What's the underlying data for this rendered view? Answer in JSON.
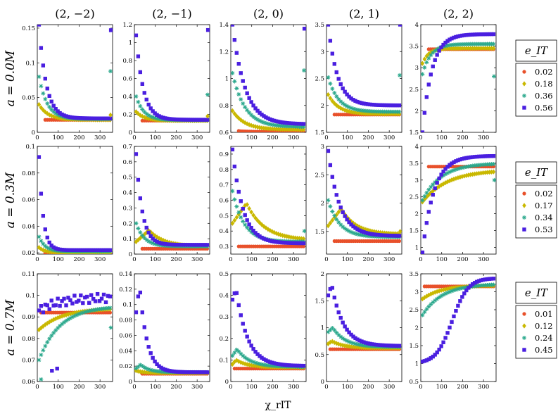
{
  "chart_data": {
    "type": "scatter",
    "xlabel": "χ_rIT",
    "xticks": [
      0,
      100,
      200,
      300
    ],
    "xlim": [
      0,
      360
    ],
    "column_titles": [
      "(2, −2)",
      "(2, −1)",
      "(2, 0)",
      "(2, 1)",
      "(2, 2)"
    ],
    "colors": [
      "#e8502a",
      "#c9b800",
      "#2aa88c",
      "#4a1fe0"
    ],
    "rows": [
      {
        "label": "a = 0.0M",
        "legend_title": "e_IT",
        "legend": [
          "0.02",
          "0.18",
          "0.36",
          "0.56"
        ],
        "panels": [
          {
            "ylim": [
              0,
              0.155
            ],
            "yticks": [
              0,
              0.05,
              0.1,
              0.15
            ],
            "ytick_labels": [
              "0",
              "0.05",
              "0.1",
              "0.15"
            ],
            "series": [
              {
                "type": "flat",
                "y0": 0.018,
                "x0": 30
              },
              {
                "type": "decay",
                "y0": 0.04,
                "yinf": 0.018,
                "tau": 45
              },
              {
                "type": "decay",
                "y0": 0.08,
                "yinf": 0.019,
                "tau": 40
              },
              {
                "type": "decay",
                "y0": 0.155,
                "yinf": 0.02,
                "tau": 35
              }
            ],
            "outliers": [
              {
                "s": 1,
                "x": 350,
                "y": 0.025
              },
              {
                "s": 2,
                "x": 350,
                "y": 0.088
              },
              {
                "s": 3,
                "x": 352,
                "y": 0.147
              }
            ]
          },
          {
            "ylim": [
              0,
              1.2
            ],
            "yticks": [
              0,
              0.2,
              0.4,
              0.6,
              0.8,
              1,
              1.2
            ],
            "ytick_labels": [
              "0",
              "0.2",
              "0.4",
              "0.6",
              "0.8",
              "1",
              "1.2"
            ],
            "series": [
              {
                "type": "flat",
                "y0": 0.13,
                "x0": 30
              },
              {
                "type": "decay",
                "y0": 0.23,
                "yinf": 0.13,
                "tau": 40
              },
              {
                "type": "decay",
                "y0": 0.4,
                "yinf": 0.135,
                "tau": 38
              },
              {
                "type": "decay",
                "y0": 1.08,
                "yinf": 0.14,
                "tau": 35
              }
            ],
            "outliers": [
              {
                "s": 1,
                "x": 350,
                "y": 0.18
              },
              {
                "s": 2,
                "x": 350,
                "y": 0.42
              },
              {
                "s": 3,
                "x": 352,
                "y": 1.14
              }
            ]
          },
          {
            "ylim": [
              0.6,
              1.4
            ],
            "yticks": [
              0.6,
              0.8,
              1,
              1.2,
              1.4
            ],
            "ytick_labels": [
              "0.6",
              "0.8",
              "1",
              "1.2",
              "1.4"
            ],
            "series": [
              {
                "type": "decay",
                "y0": 0.62,
                "yinf": 0.605,
                "tau": 30,
                "x0": 30
              },
              {
                "type": "decay",
                "y0": 0.76,
                "yinf": 0.62,
                "tau": 60
              },
              {
                "type": "decay",
                "y0": 1.04,
                "yinf": 0.64,
                "tau": 60
              },
              {
                "type": "decay",
                "y0": 1.4,
                "yinf": 0.66,
                "tau": 60
              }
            ],
            "outliers": [
              {
                "s": 2,
                "x": 350,
                "y": 1.06
              },
              {
                "s": 3,
                "x": 352,
                "y": 1.37
              }
            ]
          },
          {
            "ylim": [
              1.5,
              3.5
            ],
            "yticks": [
              1.5,
              2,
              2.5,
              3,
              3.5
            ],
            "ytick_labels": [
              "1.5",
              "2",
              "2.5",
              "3",
              "3.5"
            ],
            "series": [
              {
                "type": "flat",
                "y0": 1.83,
                "x0": 30
              },
              {
                "type": "decay",
                "y0": 2.2,
                "yinf": 1.84,
                "tau": 50
              },
              {
                "type": "decay",
                "y0": 2.52,
                "yinf": 1.88,
                "tau": 50
              },
              {
                "type": "decay",
                "y0": 3.5,
                "yinf": 2.0,
                "tau": 45
              }
            ],
            "outliers": [
              {
                "s": 2,
                "x": 350,
                "y": 2.56
              },
              {
                "s": 3,
                "x": 352,
                "y": 3.5
              }
            ]
          },
          {
            "ylim": [
              1.5,
              4
            ],
            "yticks": [
              1.5,
              2,
              2.5,
              3,
              3.5,
              4
            ],
            "ytick_labels": [
              "1.5",
              "2",
              "2.5",
              "3",
              "3.5",
              "4"
            ],
            "series": [
              {
                "type": "flat",
                "y0": 3.43,
                "x0": 30
              },
              {
                "type": "rise",
                "y0": 3.1,
                "yinf": 3.45,
                "tau": 30
              },
              {
                "type": "rise",
                "y0": 2.85,
                "yinf": 3.55,
                "tau": 40
              },
              {
                "type": "rise",
                "y0": 1.5,
                "yinf": 3.78,
                "tau": 45
              }
            ],
            "outliers": [
              {
                "s": 2,
                "x": 350,
                "y": 2.8
              },
              {
                "s": 3,
                "x": 352,
                "y": 1.42
              }
            ]
          }
        ]
      },
      {
        "label": "a = 0.3M",
        "legend_title": "e_IT",
        "legend": [
          "0.02",
          "0.17",
          "0.34",
          "0.53"
        ],
        "panels": [
          {
            "ylim": [
              0.019,
              0.1
            ],
            "yticks": [
              0.02,
              0.04,
              0.06,
              0.08,
              0.1
            ],
            "ytick_labels": [
              "0.02",
              "0.04",
              "0.06",
              "0.08",
              "0.1"
            ],
            "series": [
              {
                "type": "flat",
                "y0": 0.0195,
                "x0": 30
              },
              {
                "type": "decay",
                "y0": 0.024,
                "yinf": 0.02,
                "tau": 30
              },
              {
                "type": "decay",
                "y0": 0.032,
                "yinf": 0.021,
                "tau": 30
              },
              {
                "type": "decay",
                "y0": 0.092,
                "yinf": 0.022,
                "tau": 20
              }
            ],
            "outliers": []
          },
          {
            "ylim": [
              0,
              0.7
            ],
            "yticks": [
              0,
              0.1,
              0.2,
              0.3,
              0.4,
              0.5,
              0.6,
              0.7
            ],
            "ytick_labels": [
              "0",
              "0.1",
              "0.2",
              "0.3",
              "0.4",
              "0.5",
              "0.6",
              "0.7"
            ],
            "series": [
              {
                "type": "flat",
                "y0": 0.035,
                "x0": 30
              },
              {
                "type": "hump",
                "y0": 0.08,
                "peak": 0.155,
                "xpeak": 70,
                "yinf": 0.05,
                "tau": 70
              },
              {
                "type": "decay",
                "y0": 0.2,
                "yinf": 0.05,
                "tau": 40
              },
              {
                "type": "decay",
                "y0": 0.65,
                "yinf": 0.06,
                "tau": 30
              }
            ],
            "outliers": []
          },
          {
            "ylim": [
              0.25,
              0.95
            ],
            "yticks": [
              0.3,
              0.4,
              0.5,
              0.6,
              0.7,
              0.8,
              0.9
            ],
            "ytick_labels": [
              "0.3",
              "0.4",
              "0.5",
              "0.6",
              "0.7",
              "0.8",
              "0.9"
            ],
            "series": [
              {
                "type": "flat",
                "y0": 0.3,
                "x0": 30
              },
              {
                "type": "hump",
                "y0": 0.45,
                "peak": 0.58,
                "xpeak": 75,
                "yinf": 0.34,
                "tau": 85
              },
              {
                "type": "decay",
                "y0": 0.66,
                "yinf": 0.33,
                "tau": 55
              },
              {
                "type": "decay",
                "y0": 0.93,
                "yinf": 0.32,
                "tau": 50
              }
            ],
            "outliers": [
              {
                "s": 2,
                "x": 352,
                "y": 0.4
              }
            ]
          },
          {
            "ylim": [
              1.1,
              3
            ],
            "yticks": [
              1.5,
              2,
              2.5,
              3
            ],
            "ytick_labels": [
              "1.5",
              "2",
              "2.5",
              "3"
            ],
            "series": [
              {
                "type": "flat",
                "y0": 1.33,
                "x0": 30
              },
              {
                "type": "hump",
                "y0": 1.6,
                "peak": 1.9,
                "xpeak": 70,
                "yinf": 1.45,
                "tau": 70
              },
              {
                "type": "decay",
                "y0": 2.05,
                "yinf": 1.4,
                "tau": 55
              },
              {
                "type": "decay",
                "y0": 2.92,
                "yinf": 1.42,
                "tau": 55
              }
            ],
            "outliers": [
              {
                "s": 1,
                "x": 352,
                "y": 1.5
              }
            ]
          },
          {
            "ylim": [
              0.8,
              4
            ],
            "yticks": [
              1,
              1.5,
              2,
              2.5,
              3,
              3.5,
              4
            ],
            "ytick_labels": [
              "1",
              "1.5",
              "2",
              "2.5",
              "3",
              "3.5",
              "4"
            ],
            "series": [
              {
                "type": "flat",
                "y0": 3.4,
                "x0": 30
              },
              {
                "type": "rise",
                "y0": 2.35,
                "yinf": 3.3,
                "tau": 120
              },
              {
                "type": "rise",
                "y0": 2.4,
                "yinf": 3.5,
                "tau": 90
              },
              {
                "type": "rise",
                "y0": 0.85,
                "yinf": 3.72,
                "tau": 55
              }
            ],
            "outliers": [
              {
                "s": 2,
                "x": 352,
                "y": 3.0
              }
            ]
          }
        ]
      },
      {
        "label": "a = 0.7M",
        "legend_title": "e_IT",
        "legend": [
          "0.01",
          "0.12",
          "0.24",
          "0.45"
        ],
        "panels": [
          {
            "ylim": [
              0.06,
              0.11
            ],
            "yticks": [
              0.06,
              0.07,
              0.08,
              0.09,
              0.1,
              0.11
            ],
            "ytick_labels": [
              "0.06",
              "0.07",
              "0.08",
              "0.09",
              "0.1",
              "0.11"
            ],
            "series": [
              {
                "type": "flat",
                "y0": 0.092,
                "x0": 10
              },
              {
                "type": "rise",
                "y0": 0.084,
                "yinf": 0.094,
                "tau": 110
              },
              {
                "type": "rise",
                "y0": 0.07,
                "yinf": 0.095,
                "tau": 100
              },
              {
                "type": "noisy",
                "y0": 0.093,
                "yinf": 0.099,
                "tau": 100
              }
            ],
            "outliers": [
              {
                "s": 3,
                "x": 70,
                "y": 0.065
              },
              {
                "s": 3,
                "x": 95,
                "y": 0.066
              },
              {
                "s": 2,
                "x": 18,
                "y": 0.061
              },
              {
                "s": 2,
                "x": 352,
                "y": 0.085
              }
            ]
          },
          {
            "ylim": [
              0,
              0.14
            ],
            "yticks": [
              0,
              0.02,
              0.04,
              0.06,
              0.08,
              0.1,
              0.12,
              0.14
            ],
            "ytick_labels": [
              "0",
              "0.02",
              "0.04",
              "0.06",
              "0.08",
              "0.1",
              "0.12",
              "0.14"
            ],
            "series": [
              {
                "type": "flat",
                "y0": 0.01,
                "x0": 30
              },
              {
                "type": "decay",
                "y0": 0.014,
                "yinf": 0.011,
                "tau": 40
              },
              {
                "type": "hump",
                "y0": 0.017,
                "peak": 0.022,
                "xpeak": 30,
                "yinf": 0.012,
                "tau": 40
              },
              {
                "type": "hump",
                "y0": 0.09,
                "peak": 0.125,
                "xpeak": 25,
                "yinf": 0.012,
                "tau": 35
              }
            ],
            "outliers": []
          },
          {
            "ylim": [
              0,
              0.5
            ],
            "yticks": [
              0,
              0.1,
              0.2,
              0.3,
              0.4,
              0.5
            ],
            "ytick_labels": [
              "0",
              "0.1",
              "0.2",
              "0.3",
              "0.4",
              "0.5"
            ],
            "series": [
              {
                "type": "flat",
                "y0": 0.06,
                "x0": 10
              },
              {
                "type": "hump",
                "y0": 0.08,
                "peak": 0.1,
                "xpeak": 25,
                "yinf": 0.065,
                "tau": 60
              },
              {
                "type": "hump",
                "y0": 0.12,
                "peak": 0.15,
                "xpeak": 30,
                "yinf": 0.068,
                "tau": 60
              },
              {
                "type": "hump",
                "y0": 0.38,
                "peak": 0.43,
                "xpeak": 25,
                "yinf": 0.072,
                "tau": 55
              }
            ],
            "outliers": []
          },
          {
            "ylim": [
              0,
              2
            ],
            "yticks": [
              0,
              0.5,
              1,
              1.5,
              2
            ],
            "ytick_labels": [
              "0",
              "0.5",
              "1",
              "1.5",
              "2"
            ],
            "series": [
              {
                "type": "flat",
                "y0": 0.6,
                "x0": 10
              },
              {
                "type": "hump",
                "y0": 0.7,
                "peak": 0.75,
                "xpeak": 25,
                "yinf": 0.62,
                "tau": 60
              },
              {
                "type": "hump",
                "y0": 0.92,
                "peak": 1.0,
                "xpeak": 30,
                "yinf": 0.64,
                "tau": 60
              },
              {
                "type": "hump",
                "y0": 1.6,
                "peak": 1.8,
                "xpeak": 25,
                "yinf": 0.66,
                "tau": 55
              }
            ],
            "outliers": []
          },
          {
            "ylim": [
              0.5,
              3.5
            ],
            "yticks": [
              0.5,
              1,
              1.5,
              2,
              2.5,
              3,
              3.5
            ],
            "ytick_labels": [
              "0.5",
              "1",
              "1.5",
              "2",
              "2.5",
              "3",
              "3.5"
            ],
            "series": [
              {
                "type": "flat",
                "y0": 3.15,
                "x0": 10
              },
              {
                "type": "rise",
                "y0": 2.8,
                "yinf": 3.18,
                "tau": 90
              },
              {
                "type": "rise",
                "y0": 2.35,
                "yinf": 3.22,
                "tau": 95
              },
              {
                "type": "sigmoid",
                "y0": 1.0,
                "yinf": 3.38,
                "xmid": 150,
                "w": 38
              }
            ],
            "outliers": []
          }
        ]
      }
    ]
  }
}
